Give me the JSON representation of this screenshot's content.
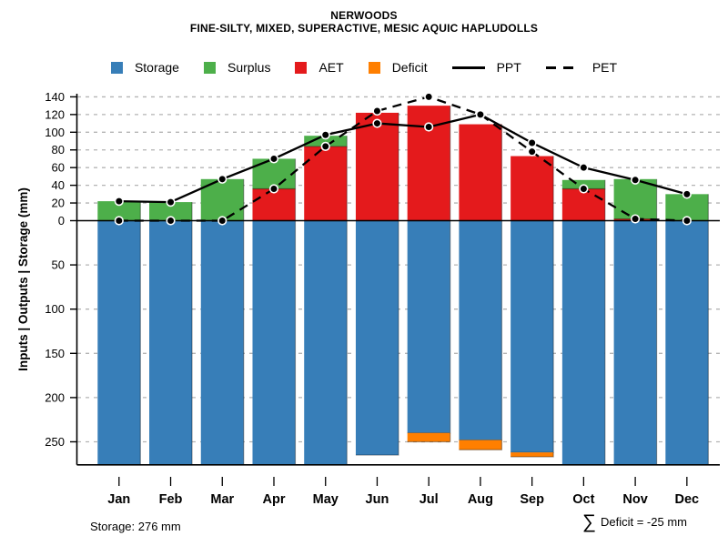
{
  "header": {
    "title": "NERWOODS",
    "subtitle": "FINE-SILTY, MIXED, SUPERACTIVE, MESIC AQUIC HAPLUDOLLS"
  },
  "legend": {
    "items": [
      {
        "label": "Storage",
        "type": "square",
        "color": "#377EB8"
      },
      {
        "label": "Surplus",
        "type": "square",
        "color": "#4DAF4A"
      },
      {
        "label": "AET",
        "type": "square",
        "color": "#E41A1C"
      },
      {
        "label": "Deficit",
        "type": "square",
        "color": "#FF7F00"
      },
      {
        "label": "PPT",
        "type": "line-solid"
      },
      {
        "label": "PET",
        "type": "line-dashed"
      }
    ]
  },
  "y_axis": {
    "label": "Inputs | Outputs | Storage  (mm)",
    "upper_ticks": [
      140,
      120,
      100,
      80,
      60,
      40,
      20,
      0
    ],
    "lower_ticks": [
      50,
      100,
      150,
      200,
      250
    ]
  },
  "footer": {
    "storage_label": "Storage: 276 mm",
    "deficit_sigma": "∑",
    "deficit_label": "Deficit = -25 mm"
  },
  "colors": {
    "storage": "#377EB8",
    "surplus": "#4DAF4A",
    "aet": "#E41A1C",
    "deficit": "#FF7F00",
    "grid": "#b4b4b4",
    "line": "#000000"
  },
  "chart_data": {
    "type": "bar",
    "subtype": "stacked water-balance bars with PPT/PET line overlay",
    "categories": [
      "Jan",
      "Feb",
      "Mar",
      "Apr",
      "May",
      "Jun",
      "Jul",
      "Aug",
      "Sep",
      "Oct",
      "Nov",
      "Dec"
    ],
    "series": [
      {
        "name": "AET",
        "type": "bar-up",
        "values": [
          0,
          0,
          0,
          36,
          84,
          122,
          130,
          109,
          73,
          36,
          2,
          0
        ]
      },
      {
        "name": "Surplus",
        "type": "bar-up-stacked-on-AET",
        "values": [
          22,
          21,
          47,
          34,
          12,
          0,
          0,
          0,
          0,
          10,
          45,
          30
        ]
      },
      {
        "name": "Storage",
        "type": "bar-down",
        "values": [
          276,
          276,
          276,
          276,
          276,
          265,
          240,
          248,
          262,
          276,
          276,
          276
        ]
      },
      {
        "name": "Deficit",
        "type": "bar-down-below-storage",
        "values": [
          0,
          0,
          0,
          0,
          0,
          0,
          10,
          11,
          5,
          0,
          0,
          0
        ]
      },
      {
        "name": "PPT",
        "type": "line-solid",
        "values": [
          22,
          21,
          47,
          70,
          97,
          110,
          106,
          120,
          88,
          60,
          46,
          30
        ]
      },
      {
        "name": "PET",
        "type": "line-dashed",
        "values": [
          0,
          0,
          0,
          36,
          84,
          124,
          140,
          120,
          78,
          36,
          2,
          0
        ]
      }
    ],
    "ylabel": "Inputs | Outputs | Storage  (mm)",
    "ylim_upper_mm": [
      0,
      145
    ],
    "ylim_lower_storage_depth_mm": 276,
    "grid": "horizontal dashed, every 20 mm above zero, every 50 mm below zero",
    "legend_position": "top center",
    "annotations": [
      "Storage: 276 mm",
      "∑ Deficit = -25 mm"
    ]
  }
}
